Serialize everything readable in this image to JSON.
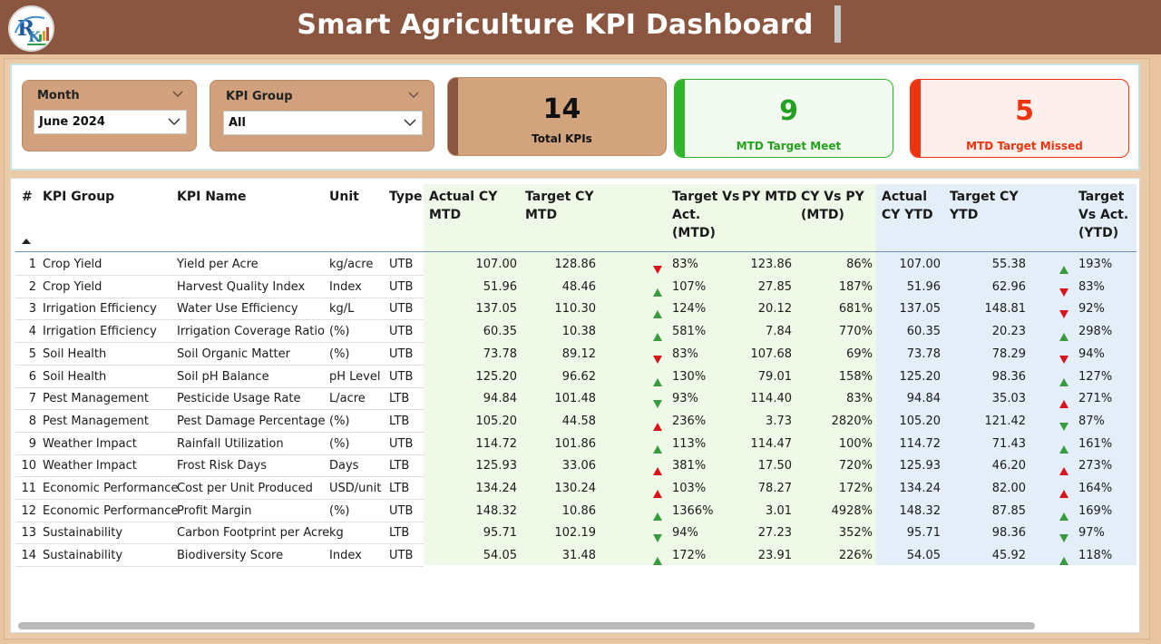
{
  "header": {
    "title": "Smart Agriculture KPI Dashboard"
  },
  "filters": {
    "month": {
      "label": "Month",
      "value": "June 2024"
    },
    "kpi_group": {
      "label": "KPI Group",
      "value": "All"
    }
  },
  "cards": {
    "total": {
      "value": "14",
      "label": "Total KPIs"
    },
    "meet": {
      "value": "9",
      "label": "MTD Target Meet"
    },
    "missed": {
      "value": "5",
      "label": "MTD Target Missed"
    }
  },
  "colors": {
    "header_bg": "#8a5640",
    "card_brown": "#d2a47e",
    "card_brown_strip": "#8a5640",
    "meet_green": "#2fb52a",
    "missed_red": "#ee3311",
    "up_green": "#3a9a3f",
    "down_red": "#d8141c",
    "mtd_bg": "#eef9e7",
    "ytd_bg": "#e3eef9"
  },
  "table": {
    "columns": [
      {
        "key": "num",
        "label": "#"
      },
      {
        "key": "group",
        "label": "KPI Group"
      },
      {
        "key": "name",
        "label": "KPI Name"
      },
      {
        "key": "unit",
        "label": "Unit"
      },
      {
        "key": "type",
        "label": "Type"
      },
      {
        "key": "actual_mtd",
        "label_lines": [
          "Actual CY",
          "MTD"
        ]
      },
      {
        "key": "target_mtd",
        "label_lines": [
          "Target CY",
          "MTD"
        ]
      },
      {
        "key": "tva_mtd",
        "label_lines": [
          "Target Vs",
          "Act.",
          "(MTD)"
        ]
      },
      {
        "key": "py_mtd",
        "label": "PY MTD"
      },
      {
        "key": "cy_vs_py",
        "label_lines": [
          "CY Vs PY",
          "(MTD)"
        ]
      },
      {
        "key": "actual_ytd",
        "label_lines": [
          "Actual",
          "CY YTD"
        ]
      },
      {
        "key": "target_ytd",
        "label_lines": [
          "Target CY",
          "YTD"
        ]
      },
      {
        "key": "tva_ytd",
        "label_lines": [
          "Target",
          "Vs Act.",
          "(YTD)"
        ]
      }
    ],
    "rows": [
      {
        "num": "1",
        "group": "Crop Yield",
        "name": "Yield per Acre",
        "unit": "kg/acre",
        "type": "UTB",
        "actual_mtd": "107.00",
        "target_mtd": "128.86",
        "mtd_icon": "down-red",
        "tva_mtd": "83%",
        "py_mtd": "123.86",
        "cy_vs_py": "86%",
        "actual_ytd": "107.00",
        "target_ytd": "55.38",
        "ytd_icon": "up-green",
        "tva_ytd": "193%"
      },
      {
        "num": "2",
        "group": "Crop Yield",
        "name": "Harvest Quality Index",
        "unit": "Index",
        "type": "UTB",
        "actual_mtd": "51.96",
        "target_mtd": "48.46",
        "mtd_icon": "up-green",
        "tva_mtd": "107%",
        "py_mtd": "27.85",
        "cy_vs_py": "187%",
        "actual_ytd": "51.96",
        "target_ytd": "62.96",
        "ytd_icon": "down-red",
        "tva_ytd": "83%"
      },
      {
        "num": "3",
        "group": "Irrigation Efficiency",
        "name": "Water Use Efficiency",
        "unit": "kg/L",
        "type": "UTB",
        "actual_mtd": "137.05",
        "target_mtd": "110.30",
        "mtd_icon": "up-green",
        "tva_mtd": "124%",
        "py_mtd": "20.12",
        "cy_vs_py": "681%",
        "actual_ytd": "137.05",
        "target_ytd": "148.81",
        "ytd_icon": "down-red",
        "tva_ytd": "92%"
      },
      {
        "num": "4",
        "group": "Irrigation Efficiency",
        "name": "Irrigation Coverage Ratio",
        "unit": "(%)",
        "type": "UTB",
        "actual_mtd": "60.35",
        "target_mtd": "10.38",
        "mtd_icon": "up-green",
        "tva_mtd": "581%",
        "py_mtd": "7.84",
        "cy_vs_py": "770%",
        "actual_ytd": "60.35",
        "target_ytd": "20.23",
        "ytd_icon": "up-green",
        "tva_ytd": "298%"
      },
      {
        "num": "5",
        "group": "Soil Health",
        "name": "Soil Organic Matter",
        "unit": "(%)",
        "type": "UTB",
        "actual_mtd": "73.78",
        "target_mtd": "89.12",
        "mtd_icon": "down-red",
        "tva_mtd": "83%",
        "py_mtd": "107.68",
        "cy_vs_py": "69%",
        "actual_ytd": "73.78",
        "target_ytd": "78.29",
        "ytd_icon": "down-red",
        "tva_ytd": "94%"
      },
      {
        "num": "6",
        "group": "Soil Health",
        "name": "Soil pH Balance",
        "unit": "pH Level",
        "type": "UTB",
        "actual_mtd": "125.20",
        "target_mtd": "96.62",
        "mtd_icon": "up-green",
        "tva_mtd": "130%",
        "py_mtd": "79.01",
        "cy_vs_py": "158%",
        "actual_ytd": "125.20",
        "target_ytd": "98.36",
        "ytd_icon": "up-green",
        "tva_ytd": "127%"
      },
      {
        "num": "7",
        "group": "Pest Management",
        "name": "Pesticide Usage Rate",
        "unit": "L/acre",
        "type": "LTB",
        "actual_mtd": "94.84",
        "target_mtd": "101.48",
        "mtd_icon": "down-green",
        "tva_mtd": "93%",
        "py_mtd": "114.40",
        "cy_vs_py": "83%",
        "actual_ytd": "94.84",
        "target_ytd": "35.03",
        "ytd_icon": "up-red",
        "tva_ytd": "271%"
      },
      {
        "num": "8",
        "group": "Pest Management",
        "name": "Pest Damage Percentage",
        "unit": "(%)",
        "type": "LTB",
        "actual_mtd": "105.20",
        "target_mtd": "44.58",
        "mtd_icon": "up-red",
        "tva_mtd": "236%",
        "py_mtd": "3.73",
        "cy_vs_py": "2820%",
        "actual_ytd": "105.20",
        "target_ytd": "121.42",
        "ytd_icon": "down-green",
        "tva_ytd": "87%"
      },
      {
        "num": "9",
        "group": "Weather Impact",
        "name": "Rainfall Utilization",
        "unit": "(%)",
        "type": "UTB",
        "actual_mtd": "114.72",
        "target_mtd": "101.86",
        "mtd_icon": "up-green",
        "tva_mtd": "113%",
        "py_mtd": "114.47",
        "cy_vs_py": "100%",
        "actual_ytd": "114.72",
        "target_ytd": "71.43",
        "ytd_icon": "up-green",
        "tva_ytd": "161%"
      },
      {
        "num": "10",
        "group": "Weather Impact",
        "name": "Frost Risk Days",
        "unit": "Days",
        "type": "LTB",
        "actual_mtd": "125.93",
        "target_mtd": "33.06",
        "mtd_icon": "up-red",
        "tva_mtd": "381%",
        "py_mtd": "17.50",
        "cy_vs_py": "720%",
        "actual_ytd": "125.93",
        "target_ytd": "46.20",
        "ytd_icon": "up-red",
        "tva_ytd": "273%"
      },
      {
        "num": "11",
        "group": "Economic Performance",
        "name": "Cost per Unit Produced",
        "unit": "USD/unit",
        "type": "LTB",
        "actual_mtd": "134.24",
        "target_mtd": "130.24",
        "mtd_icon": "up-red",
        "tva_mtd": "103%",
        "py_mtd": "78.27",
        "cy_vs_py": "172%",
        "actual_ytd": "134.24",
        "target_ytd": "82.00",
        "ytd_icon": "up-red",
        "tva_ytd": "164%"
      },
      {
        "num": "12",
        "group": "Economic Performance",
        "name": "Profit Margin",
        "unit": "(%)",
        "type": "UTB",
        "actual_mtd": "148.32",
        "target_mtd": "10.86",
        "mtd_icon": "up-green",
        "tva_mtd": "1366%",
        "py_mtd": "3.01",
        "cy_vs_py": "4928%",
        "actual_ytd": "148.32",
        "target_ytd": "87.85",
        "ytd_icon": "up-green",
        "tva_ytd": "169%"
      },
      {
        "num": "13",
        "group": "Sustainability",
        "name": "Carbon Footprint per Acre",
        "unit": "kg",
        "type": "LTB",
        "actual_mtd": "95.71",
        "target_mtd": "102.19",
        "mtd_icon": "down-green",
        "tva_mtd": "94%",
        "py_mtd": "27.23",
        "cy_vs_py": "352%",
        "actual_ytd": "95.71",
        "target_ytd": "98.36",
        "ytd_icon": "down-green",
        "tva_ytd": "97%"
      },
      {
        "num": "14",
        "group": "Sustainability",
        "name": "Biodiversity Score",
        "unit": "Index",
        "type": "UTB",
        "actual_mtd": "54.05",
        "target_mtd": "31.48",
        "mtd_icon": "up-green",
        "tva_mtd": "172%",
        "py_mtd": "23.91",
        "cy_vs_py": "226%",
        "actual_ytd": "54.05",
        "target_ytd": "45.92",
        "ytd_icon": "up-green",
        "tva_ytd": "118%"
      }
    ]
  }
}
